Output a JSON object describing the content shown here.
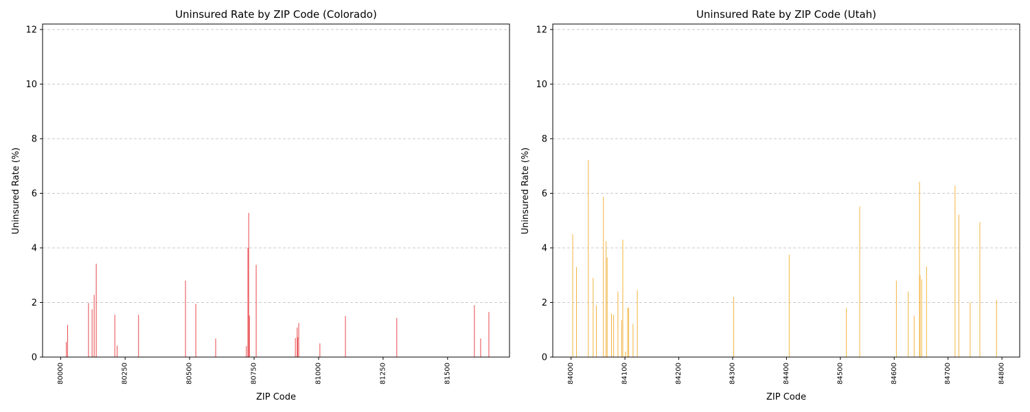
{
  "chart_data": [
    {
      "type": "bar",
      "title": "Uninsured Rate by ZIP Code (Colorado)",
      "xlabel": "ZIP Code",
      "ylabel": "Uninsured Rate (%)",
      "xlim": [
        79930,
        81740
      ],
      "ylim": [
        0,
        12.2
      ],
      "xticks": [
        80000,
        80250,
        80500,
        80750,
        81000,
        81250,
        81500
      ],
      "yticks": [
        0,
        2,
        4,
        6,
        8,
        10,
        12
      ],
      "grid": "y",
      "color": "#e8464a",
      "points": [
        {
          "x": 80022,
          "y": 0.55
        },
        {
          "x": 80027,
          "y": 1.18
        },
        {
          "x": 80108,
          "y": 1.98
        },
        {
          "x": 80122,
          "y": 1.75
        },
        {
          "x": 80130,
          "y": 2.28
        },
        {
          "x": 80138,
          "y": 3.42
        },
        {
          "x": 80210,
          "y": 1.55
        },
        {
          "x": 80219,
          "y": 0.42
        },
        {
          "x": 80302,
          "y": 1.55
        },
        {
          "x": 80484,
          "y": 2.8
        },
        {
          "x": 80524,
          "y": 1.95
        },
        {
          "x": 80601,
          "y": 0.68
        },
        {
          "x": 80720,
          "y": 0.4
        },
        {
          "x": 80726,
          "y": 4.0
        },
        {
          "x": 80729,
          "y": 5.28
        },
        {
          "x": 80732,
          "y": 1.52
        },
        {
          "x": 80758,
          "y": 3.38
        },
        {
          "x": 80910,
          "y": 0.7
        },
        {
          "x": 80917,
          "y": 1.08
        },
        {
          "x": 80919,
          "y": 0.73
        },
        {
          "x": 80923,
          "y": 1.25
        },
        {
          "x": 81005,
          "y": 0.5
        },
        {
          "x": 81104,
          "y": 1.5
        },
        {
          "x": 81303,
          "y": 1.43
        },
        {
          "x": 81604,
          "y": 1.9
        },
        {
          "x": 81628,
          "y": 0.68
        },
        {
          "x": 81660,
          "y": 1.65
        }
      ]
    },
    {
      "type": "bar",
      "title": "Uninsured Rate by ZIP Code (Utah)",
      "xlabel": "ZIP Code",
      "ylabel": "Uninsured Rate (%)",
      "xlim": [
        83966,
        84833
      ],
      "ylim": [
        0,
        12.2
      ],
      "xticks": [
        84000,
        84100,
        84200,
        84300,
        84400,
        84500,
        84600,
        84700,
        84800
      ],
      "yticks": [
        0,
        2,
        4,
        6,
        8,
        10,
        12
      ],
      "grid": "y",
      "color": "#f2b33d",
      "points": [
        {
          "x": 84003,
          "y": 4.5
        },
        {
          "x": 84010,
          "y": 3.3
        },
        {
          "x": 84032,
          "y": 7.22
        },
        {
          "x": 84041,
          "y": 2.9
        },
        {
          "x": 84047,
          "y": 1.9
        },
        {
          "x": 84060,
          "y": 5.87
        },
        {
          "x": 84065,
          "y": 4.25
        },
        {
          "x": 84067,
          "y": 3.65
        },
        {
          "x": 84075,
          "y": 1.6
        },
        {
          "x": 84079,
          "y": 1.55
        },
        {
          "x": 84087,
          "y": 2.4
        },
        {
          "x": 84094,
          "y": 1.35
        },
        {
          "x": 84096,
          "y": 4.3
        },
        {
          "x": 84101,
          "y": 0.2
        },
        {
          "x": 84105,
          "y": 1.8
        },
        {
          "x": 84107,
          "y": 1.82
        },
        {
          "x": 84115,
          "y": 1.22
        },
        {
          "x": 84123,
          "y": 2.45
        },
        {
          "x": 84302,
          "y": 2.2
        },
        {
          "x": 84405,
          "y": 3.75
        },
        {
          "x": 84511,
          "y": 1.8
        },
        {
          "x": 84536,
          "y": 5.52
        },
        {
          "x": 84604,
          "y": 2.8
        },
        {
          "x": 84626,
          "y": 2.4
        },
        {
          "x": 84637,
          "y": 1.52
        },
        {
          "x": 84647,
          "y": 6.42
        },
        {
          "x": 84648,
          "y": 3.0
        },
        {
          "x": 84651,
          "y": 2.85
        },
        {
          "x": 84660,
          "y": 3.32
        },
        {
          "x": 84713,
          "y": 6.28
        },
        {
          "x": 84720,
          "y": 5.22
        },
        {
          "x": 84741,
          "y": 2.0
        },
        {
          "x": 84759,
          "y": 4.95
        },
        {
          "x": 84790,
          "y": 2.1
        }
      ]
    }
  ]
}
